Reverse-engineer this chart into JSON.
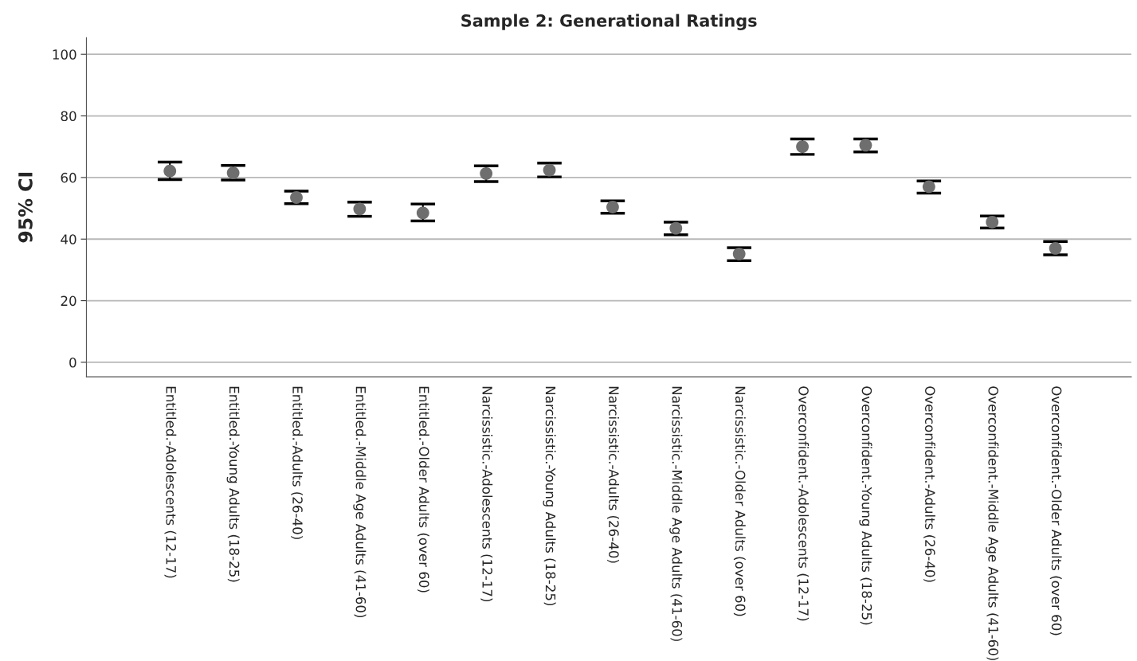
{
  "chart_data": {
    "type": "scatter",
    "title": "Sample 2: Generational Ratings",
    "ylabel": "95% CI",
    "categories": [
      "Entitled.-Adolescents (12-17)",
      "Entitled.-Young Adults (18-25)",
      "Entitled.-Adults (26-40)",
      "Entitled.-Middle Age Adults (41-60)",
      "Entitled.-Older Adults (over 60)",
      "Narcissistic.-Adolescents (12-17)",
      "Narcissistic.-Young Adults (18-25)",
      "Narcissistic.-Adults (26-40)",
      "Narcissistic.-Middle Age Adults (41-60)",
      "Narcissistic.-Older Adults (over 60)",
      "Overconfident.-Adolescents (12-17)",
      "Overconfident.-Young Adults (18-25)",
      "Overconfident.-Adults (26-40)",
      "Overconfident.-Middle Age Adults (41-60)",
      "Overconfident.-Older Adults (over 60)"
    ],
    "values": [
      62.1,
      61.5,
      53.5,
      49.8,
      48.5,
      61.3,
      62.4,
      50.4,
      43.5,
      35.2,
      70.0,
      70.5,
      57.0,
      45.5,
      37.0
    ],
    "errors": [
      [
        59.3,
        65.0
      ],
      [
        59.2,
        63.9
      ],
      [
        51.5,
        55.6
      ],
      [
        47.4,
        52.0
      ],
      [
        45.9,
        51.4
      ],
      [
        58.7,
        63.8
      ],
      [
        60.2,
        64.7
      ],
      [
        48.4,
        52.4
      ],
      [
        41.4,
        45.5
      ],
      [
        33.0,
        37.2
      ],
      [
        67.5,
        72.5
      ],
      [
        68.3,
        72.5
      ],
      [
        54.9,
        58.9
      ],
      [
        43.6,
        47.5
      ],
      [
        34.9,
        39.2
      ]
    ],
    "color": "#6e6e6e",
    "marker": "circle",
    "grid": "y",
    "ylim": [
      -4.7,
      105.4
    ],
    "yticks": [
      0,
      20,
      40,
      60,
      80,
      100
    ]
  }
}
